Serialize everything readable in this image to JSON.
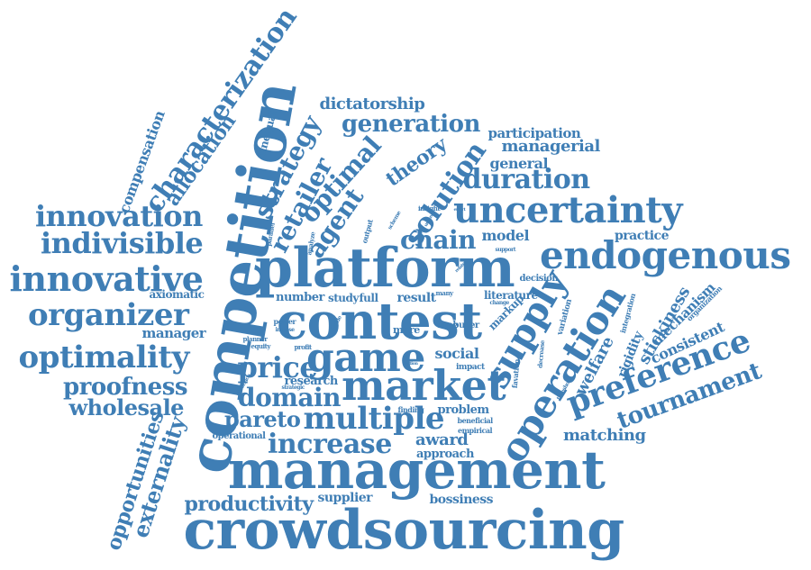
{
  "color": "#3f7eb5",
  "words": [
    "crowdsourcing",
    "management",
    "competition",
    "platform",
    "contest",
    "market",
    "game",
    "endogenous",
    "uncertainty",
    "supply",
    "operation",
    "preference",
    "multiple",
    "innovative",
    "innovation",
    "indivisible",
    "organizer",
    "optimality",
    "solution",
    "characterization",
    "proofness",
    "wholesale",
    "price",
    "increase",
    "domain",
    "pareto",
    "tournament",
    "duration",
    "generation",
    "productivity",
    "opportunities",
    "externality",
    "allocation",
    "compensation",
    "strategy",
    "retailer",
    "optimal",
    "agent",
    "theory",
    "chain",
    "dictatorship",
    "participation",
    "managerial",
    "general",
    "model",
    "practice",
    "matching",
    "stickiness",
    "welfare",
    "consistent",
    "mechanism",
    "rigidity",
    "award",
    "approach",
    "social",
    "problem",
    "supplier",
    "bossiness",
    "manager",
    "axiomatic",
    "unequal",
    "research",
    "number",
    "study",
    "full",
    "result",
    "many",
    "literature",
    "markup",
    "more",
    "time",
    "buyer",
    "impact",
    "finding",
    "beneficial",
    "empirical",
    "operational",
    "power",
    "equity",
    "profit",
    "planner",
    "impose",
    "influence",
    "strategic",
    "parallel",
    "analyze",
    "output",
    "insight",
    "scheme",
    "urgency",
    "effort",
    "support",
    "decision",
    "variation",
    "integration",
    "organization",
    "favation",
    "decrease",
    "threshold",
    "change",
    "related",
    "decide",
    "action"
  ]
}
